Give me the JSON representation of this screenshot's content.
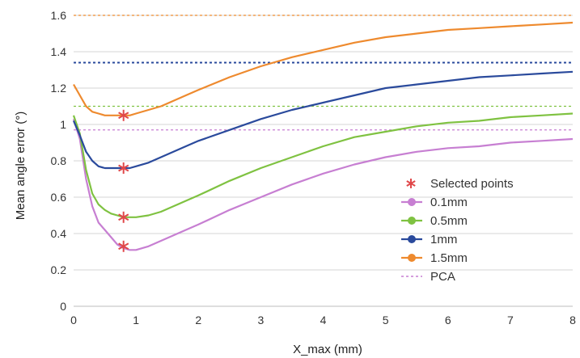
{
  "chart_data": {
    "type": "line",
    "xlabel": "X_max (mm)",
    "ylabel": "Mean angle error (°)",
    "xlim": [
      0,
      8
    ],
    "ylim": [
      0,
      1.6
    ],
    "x_ticks": [
      "0",
      "1",
      "2",
      "3",
      "4",
      "5",
      "6",
      "7",
      "8"
    ],
    "y_ticks": [
      "0",
      "0.2",
      "0.4",
      "0.6",
      "0.8",
      "1",
      "1.2",
      "1.4",
      "1.6"
    ],
    "grid": "horizontal",
    "legend_position": "bottom-right",
    "legend": {
      "selected_label": "Selected points",
      "pca_label": "PCA"
    },
    "series": [
      {
        "name": "0.1mm",
        "color": "#c77fd2",
        "x": [
          0.0,
          0.1,
          0.2,
          0.3,
          0.4,
          0.5,
          0.6,
          0.7,
          0.8,
          0.9,
          1.0,
          1.2,
          1.4,
          1.6,
          1.8,
          2.0,
          2.5,
          3.0,
          3.5,
          4.0,
          4.5,
          5.0,
          5.5,
          6.0,
          6.5,
          7.0,
          7.5,
          8.0
        ],
        "y": [
          1.03,
          0.92,
          0.7,
          0.55,
          0.46,
          0.42,
          0.38,
          0.34,
          0.32,
          0.31,
          0.31,
          0.33,
          0.36,
          0.39,
          0.42,
          0.45,
          0.53,
          0.6,
          0.67,
          0.73,
          0.78,
          0.82,
          0.85,
          0.87,
          0.88,
          0.9,
          0.91,
          0.92
        ],
        "pca": 0.97,
        "selected": [
          0.8,
          0.33
        ]
      },
      {
        "name": "0.5mm",
        "color": "#7fc241",
        "x": [
          0.0,
          0.1,
          0.2,
          0.3,
          0.4,
          0.5,
          0.6,
          0.7,
          0.8,
          0.9,
          1.0,
          1.2,
          1.4,
          1.6,
          1.8,
          2.0,
          2.5,
          3.0,
          3.5,
          4.0,
          4.5,
          5.0,
          5.5,
          6.0,
          6.5,
          7.0,
          7.5,
          8.0
        ],
        "y": [
          1.05,
          0.95,
          0.75,
          0.62,
          0.56,
          0.53,
          0.51,
          0.5,
          0.49,
          0.49,
          0.49,
          0.5,
          0.52,
          0.55,
          0.58,
          0.61,
          0.69,
          0.76,
          0.82,
          0.88,
          0.93,
          0.96,
          0.99,
          1.01,
          1.02,
          1.04,
          1.05,
          1.06
        ],
        "pca": 1.1,
        "selected": [
          0.8,
          0.49
        ]
      },
      {
        "name": "1mm",
        "color": "#2a4a9c",
        "x": [
          0.0,
          0.1,
          0.2,
          0.3,
          0.4,
          0.5,
          0.6,
          0.7,
          0.8,
          0.9,
          1.0,
          1.2,
          1.4,
          1.6,
          1.8,
          2.0,
          2.5,
          3.0,
          3.5,
          4.0,
          4.5,
          5.0,
          5.5,
          6.0,
          6.5,
          7.0,
          7.5,
          8.0
        ],
        "y": [
          1.02,
          0.94,
          0.85,
          0.8,
          0.77,
          0.76,
          0.76,
          0.76,
          0.76,
          0.76,
          0.77,
          0.79,
          0.82,
          0.85,
          0.88,
          0.91,
          0.97,
          1.03,
          1.08,
          1.12,
          1.16,
          1.2,
          1.22,
          1.24,
          1.26,
          1.27,
          1.28,
          1.29
        ],
        "pca": 1.34,
        "selected": [
          0.8,
          0.76
        ]
      },
      {
        "name": "1.5mm",
        "color": "#ee8a2e",
        "x": [
          0.0,
          0.1,
          0.2,
          0.3,
          0.4,
          0.5,
          0.6,
          0.7,
          0.8,
          0.9,
          1.0,
          1.2,
          1.4,
          1.6,
          1.8,
          2.0,
          2.5,
          3.0,
          3.5,
          4.0,
          4.5,
          5.0,
          5.5,
          6.0,
          6.5,
          7.0,
          7.5,
          8.0
        ],
        "y": [
          1.22,
          1.16,
          1.1,
          1.07,
          1.06,
          1.05,
          1.05,
          1.05,
          1.05,
          1.05,
          1.06,
          1.08,
          1.1,
          1.13,
          1.16,
          1.19,
          1.26,
          1.32,
          1.37,
          1.41,
          1.45,
          1.48,
          1.5,
          1.52,
          1.53,
          1.54,
          1.55,
          1.56
        ],
        "pca": 1.6,
        "selected": [
          0.8,
          1.05
        ]
      }
    ]
  }
}
